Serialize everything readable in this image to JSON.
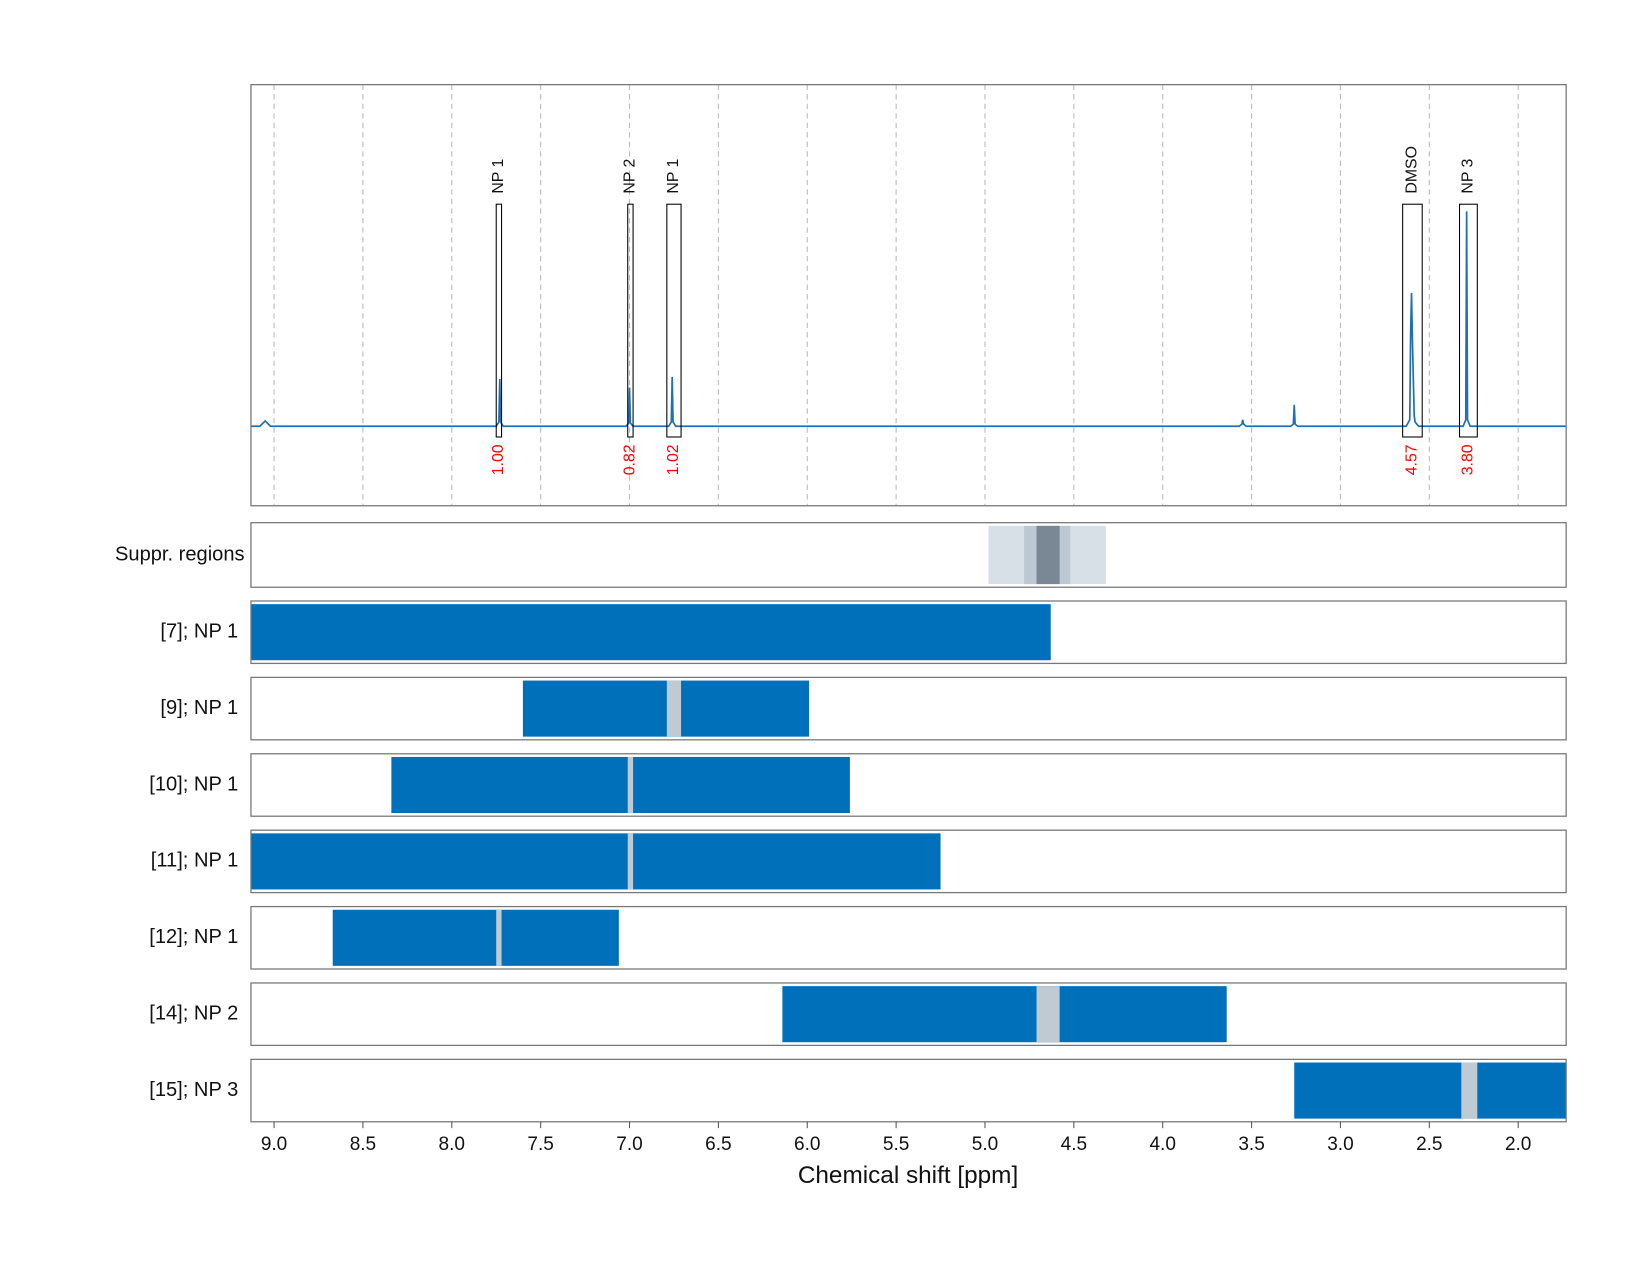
{
  "chart_data": {
    "type": "spectrum",
    "x_label": "Chemical shift [ppm]",
    "xlim": [
      9.13,
      1.73
    ],
    "xticks": [
      {
        "value": 9,
        "label": "9.0"
      },
      8.5,
      {
        "value": 8,
        "label": "8.0"
      },
      7.5,
      {
        "value": 7,
        "label": "7.0"
      },
      6.5,
      {
        "value": 6,
        "label": "6.0"
      },
      5.5,
      {
        "value": 5,
        "label": "5.0"
      },
      4.5,
      {
        "value": 4,
        "label": "4.0"
      },
      3.5,
      {
        "value": 3,
        "label": "3.0"
      },
      2.5,
      {
        "value": 2,
        "label": "2.0"
      }
    ],
    "grid": true,
    "spectrum": {
      "color": "#1f6fb4",
      "ylim": [
        -0.37,
        1.59
      ],
      "x": [
        9.13,
        9.08,
        9.05,
        9.02,
        8.9,
        7.75,
        7.735,
        7.73,
        7.725,
        7.71,
        7.02,
        7.005,
        7.0,
        6.995,
        6.98,
        6.78,
        6.765,
        6.76,
        6.755,
        6.74,
        3.57,
        3.555,
        3.55,
        3.545,
        3.53,
        3.28,
        3.265,
        3.26,
        3.255,
        3.24,
        2.63,
        2.61,
        2.605,
        2.6,
        2.595,
        2.585,
        2.58,
        2.56,
        2.31,
        2.295,
        2.29,
        2.285,
        2.27,
        1.73
      ],
      "values": [
        0,
        0,
        0.025,
        0,
        0,
        0,
        0.02,
        0.22,
        0.02,
        0,
        0,
        0.015,
        0.18,
        0.015,
        0,
        0,
        0.02,
        0.23,
        0.02,
        0,
        0,
        0.01,
        0.03,
        0.01,
        0,
        0,
        0.01,
        0.1,
        0.01,
        0,
        0,
        0.03,
        0.44,
        0.62,
        0.4,
        0.05,
        0.02,
        0,
        0,
        0.03,
        1.0,
        0.03,
        0,
        0
      ]
    },
    "peaks": {
      "labels": [
        "NP 1",
        "NP 2",
        "NP 1",
        "DMSO",
        "NP 3"
      ],
      "from": [
        7.75,
        7.01,
        6.79,
        2.65,
        2.33
      ],
      "to": [
        7.72,
        6.98,
        6.71,
        2.54,
        2.23
      ],
      "values": [
        1,
        0.82,
        1.02,
        4.57,
        3.8
      ],
      "value_labels": [
        "1.00",
        "0.82",
        "1.02",
        "4.57",
        "3.80"
      ],
      "value_color": "#ff0000"
    },
    "suppression": {
      "label": "Suppr. regions",
      "regions": [
        {
          "from": 4.98,
          "to": 4.32,
          "color": "#d7dfe7"
        },
        {
          "from": 4.78,
          "to": 4.52,
          "color": "#bcc8d2"
        },
        {
          "from": 4.71,
          "to": 4.58,
          "color": "#7a8896"
        }
      ]
    },
    "gap_color": "#bfcad3",
    "series": [
      {
        "name": "[7]; NP 1",
        "color": "#0070bb",
        "from": 9.13,
        "to": 4.63
      },
      {
        "name": "[9]; NP 1",
        "color": "#0070bb",
        "from": 7.6,
        "to": 5.99,
        "gap": [
          6.79,
          6.71
        ]
      },
      {
        "name": "[10]; NP 1",
        "color": "#0070bb",
        "from": 8.34,
        "to": 5.76,
        "gap": [
          7.01,
          6.98
        ]
      },
      {
        "name": "[11]; NP 1",
        "color": "#0070bb",
        "from": 9.13,
        "to": 5.25,
        "gap": [
          7.01,
          6.98
        ]
      },
      {
        "name": "[12]; NP 1",
        "color": "#0070bb",
        "from": 8.67,
        "to": 7.06,
        "gap": [
          7.75,
          7.72
        ]
      },
      {
        "name": "[14]; NP 2",
        "color": "#0070bb",
        "from": 6.14,
        "to": 3.64,
        "gap": [
          4.71,
          4.58
        ]
      },
      {
        "name": "[15]; NP 3",
        "color": "#0070bb",
        "from": 3.26,
        "to": 1.73,
        "gap": [
          2.32,
          2.23
        ]
      }
    ]
  }
}
